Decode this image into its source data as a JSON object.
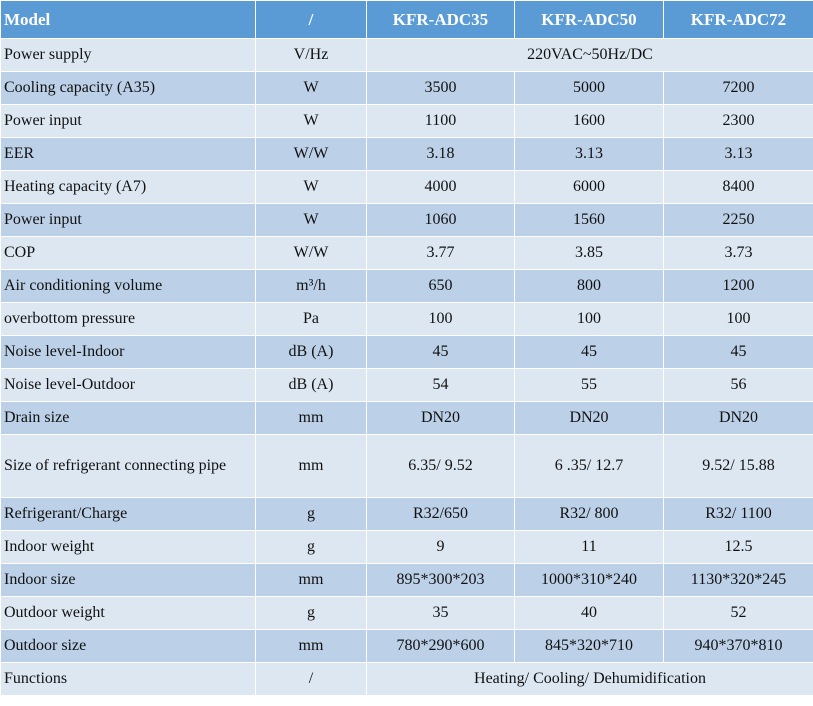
{
  "header": {
    "model": "Model",
    "unit": "/",
    "models": [
      "KFR-ADC35",
      "KFR-ADC50",
      "KFR-ADC72"
    ]
  },
  "rows": [
    {
      "label": "Power supply",
      "unit": "V/Hz",
      "merged": "220VAC~50Hz/DC"
    },
    {
      "label": "Cooling capacity (A35)",
      "unit": "W",
      "values": [
        "3500",
        "5000",
        "7200"
      ]
    },
    {
      "label": "Power input",
      "unit": "W",
      "values": [
        "1100",
        "1600",
        "2300"
      ]
    },
    {
      "label": "EER",
      "unit": "W/W",
      "values": [
        "3.18",
        "3.13",
        "3.13"
      ]
    },
    {
      "label": "Heating capacity (A7)",
      "unit": "W",
      "values": [
        "4000",
        "6000",
        "8400"
      ]
    },
    {
      "label": "Power input",
      "unit": "W",
      "values": [
        "1060",
        "1560",
        "2250"
      ]
    },
    {
      "label": "COP",
      "unit": "W/W",
      "values": [
        "3.77",
        "3.85",
        "3.73"
      ]
    },
    {
      "label": "Air conditioning volume",
      "unit": "m³/h",
      "values": [
        "650",
        "800",
        "1200"
      ]
    },
    {
      "label": "overbottom pressure",
      "unit": "Pa",
      "values": [
        "100",
        "100",
        "100"
      ]
    },
    {
      "label": "Noise level-Indoor",
      "unit": "dB (A)",
      "values": [
        "45",
        "45",
        "45"
      ]
    },
    {
      "label": "Noise level-Outdoor",
      "unit": "dB (A)",
      "values": [
        "54",
        "55",
        "56"
      ]
    },
    {
      "label": "Drain size",
      "unit": "mm",
      "values": [
        "DN20",
        "DN20",
        "DN20"
      ]
    },
    {
      "label": "Size of refrigerant connecting pipe",
      "unit": "mm",
      "values": [
        "6.35/ 9.52",
        "6 .35/ 12.7",
        "9.52/ 15.88"
      ]
    },
    {
      "label": "Refrigerant/Charge",
      "unit": "g",
      "values": [
        "R32/650",
        "R32/ 800",
        "R32/ 1100"
      ]
    },
    {
      "label": "Indoor weight",
      "unit": "g",
      "values": [
        "9",
        "11",
        "12.5"
      ]
    },
    {
      "label": "Indoor size",
      "unit": "mm",
      "values": [
        "895*300*203",
        "1000*310*240",
        "1130*320*245"
      ]
    },
    {
      "label": "Outdoor weight",
      "unit": "g",
      "values": [
        "35",
        "40",
        "52"
      ]
    },
    {
      "label": "Outdoor size",
      "unit": "mm",
      "values": [
        "780*290*600",
        "845*320*710",
        "940*370*810"
      ]
    },
    {
      "label": "Functions",
      "unit": "/",
      "merged": "Heating/ Cooling/ Dehumidification"
    }
  ]
}
